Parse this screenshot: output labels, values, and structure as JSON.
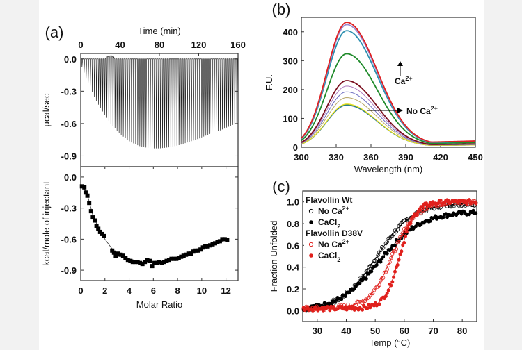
{
  "figure": {
    "panel_labels": [
      "(a)",
      "(b)",
      "(c)"
    ],
    "background": "#f2f2f2",
    "canvas": "#ffffff"
  },
  "chart_data": [
    {
      "id": "a-top",
      "type": "line",
      "title": "",
      "panel": "(a)",
      "xlabel": "Time (min)",
      "ylabel": "µcal/sec",
      "xlim": [
        0,
        160
      ],
      "ylim": [
        -1.0,
        0.05
      ],
      "xticks": [
        0,
        40,
        80,
        120,
        160
      ],
      "yticks": [
        0.0,
        -0.3,
        -0.6,
        -0.9
      ],
      "ytick_labels": [
        "0.0",
        "-0.3",
        "-0.6",
        "-0.9"
      ],
      "series": [
        {
          "name": "raw ITC injections",
          "description": "injection spikes every ~2 min; envelope of peak minima",
          "envelope_x": [
            0,
            5,
            10,
            15,
            20,
            30,
            40,
            50,
            60,
            70,
            80,
            90,
            100,
            110,
            120,
            130,
            140,
            150,
            160
          ],
          "envelope_y": [
            -0.05,
            -0.18,
            -0.28,
            -0.38,
            -0.46,
            -0.6,
            -0.7,
            -0.77,
            -0.81,
            -0.83,
            -0.83,
            -0.82,
            -0.8,
            -0.77,
            -0.74,
            -0.7,
            -0.67,
            -0.63,
            -0.59
          ],
          "color": "#222222"
        }
      ]
    },
    {
      "id": "a-bottom",
      "type": "scatter",
      "title": "",
      "panel": "(a)",
      "xlabel": "Molar Ratio",
      "ylabel": "kcal/mole of injectant",
      "xlim": [
        0,
        13
      ],
      "ylim": [
        -1.0,
        0.1
      ],
      "xticks": [
        0,
        2,
        4,
        6,
        8,
        10,
        12
      ],
      "yticks": [
        0.0,
        -0.3,
        -0.6,
        -0.9
      ],
      "ytick_labels": [
        "0.0",
        "-0.3",
        "-0.6",
        "-0.9"
      ],
      "series": [
        {
          "name": "integrated heats",
          "marker": "filled-square",
          "color": "#000000",
          "x": [
            0.1,
            0.3,
            0.4,
            0.55,
            0.7,
            0.85,
            1.0,
            1.15,
            1.3,
            1.45,
            1.6,
            1.75,
            1.9,
            2.6,
            2.75,
            2.9,
            3.1,
            3.3,
            3.5,
            3.7,
            3.9,
            4.1,
            4.3,
            4.5,
            4.7,
            4.9,
            5.1,
            5.3,
            5.5,
            5.7,
            5.9,
            6.1,
            6.3,
            6.5,
            6.7,
            6.9,
            7.1,
            7.3,
            7.5,
            7.7,
            7.9,
            8.1,
            8.3,
            8.5,
            8.7,
            8.9,
            9.1,
            9.3,
            9.5,
            9.7,
            9.9,
            10.1,
            10.3,
            10.5,
            10.7,
            10.9,
            11.1,
            11.3,
            11.5,
            11.7,
            11.9,
            12.1
          ],
          "y": [
            -0.09,
            -0.1,
            -0.15,
            -0.18,
            -0.25,
            -0.33,
            -0.39,
            -0.42,
            -0.47,
            -0.5,
            -0.53,
            -0.55,
            -0.57,
            -0.71,
            -0.73,
            -0.76,
            -0.74,
            -0.75,
            -0.76,
            -0.78,
            -0.8,
            -0.81,
            -0.82,
            -0.82,
            -0.82,
            -0.83,
            -0.84,
            -0.82,
            -0.8,
            -0.81,
            -0.86,
            -0.83,
            -0.83,
            -0.82,
            -0.83,
            -0.82,
            -0.81,
            -0.8,
            -0.79,
            -0.79,
            -0.79,
            -0.78,
            -0.77,
            -0.76,
            -0.75,
            -0.74,
            -0.74,
            -0.72,
            -0.71,
            -0.71,
            -0.7,
            -0.68,
            -0.67,
            -0.67,
            -0.66,
            -0.65,
            -0.64,
            -0.63,
            -0.62,
            -0.6,
            -0.6,
            -0.61
          ]
        },
        {
          "name": "fit",
          "type": "line",
          "color": "#333333",
          "x": [
            0,
            0.5,
            1,
            1.5,
            2,
            2.5,
            3,
            4,
            5,
            6,
            7,
            8,
            9,
            10,
            11,
            12.2
          ],
          "y": [
            -0.07,
            -0.15,
            -0.37,
            -0.5,
            -0.6,
            -0.68,
            -0.74,
            -0.79,
            -0.82,
            -0.83,
            -0.82,
            -0.79,
            -0.75,
            -0.7,
            -0.65,
            -0.6
          ]
        }
      ]
    },
    {
      "id": "b",
      "type": "line",
      "panel": "(b)",
      "title": "",
      "xlabel": "Wavelength (nm)",
      "ylabel": "F.U.",
      "xlim": [
        300,
        450
      ],
      "ylim": [
        0,
        450
      ],
      "xticks": [
        300,
        330,
        360,
        390,
        420,
        450
      ],
      "yticks": [
        0,
        100,
        200,
        300,
        400
      ],
      "peak_wavelength": 339,
      "annotations": [
        {
          "text": "Ca",
          "sup": "2+",
          "arrow": "up",
          "meaning": "increasing Ca2+"
        },
        {
          "text": "No Ca",
          "sup": "2+",
          "arrow": "right"
        }
      ],
      "series": [
        {
          "name": "spectrum 1",
          "peak": 145,
          "color": "#3a6fb0"
        },
        {
          "name": "spectrum 2",
          "peak": 147,
          "color": "#1f8a6a"
        },
        {
          "name": "spectrum 3",
          "peak": 149,
          "color": "#d8cc22"
        },
        {
          "name": "spectrum 4",
          "peak": 150,
          "color": "#e8e020"
        },
        {
          "name": "spectrum 5",
          "peak": 172,
          "color": "#b9a86a"
        },
        {
          "name": "spectrum 6",
          "peak": 192,
          "color": "#6c6cc0"
        },
        {
          "name": "spectrum 7",
          "peak": 212,
          "color": "#b07cc0"
        },
        {
          "name": "spectrum 8",
          "peak": 231,
          "color": "#7a0e1e"
        },
        {
          "name": "spectrum 9",
          "peak": 324,
          "color": "#1f8a2a"
        },
        {
          "name": "spectrum 10",
          "peak": 404,
          "color": "#2b8fb0"
        },
        {
          "name": "spectrum 11",
          "peak": 425,
          "color": "#9a8ad0"
        },
        {
          "name": "spectrum 12",
          "peak": 433,
          "color": "#e02020"
        }
      ]
    },
    {
      "id": "c",
      "type": "scatter",
      "panel": "(c)",
      "title": "",
      "xlabel": "Temp (°C)",
      "ylabel": "Fraction Unfolded",
      "xlim": [
        25,
        85
      ],
      "ylim": [
        -0.1,
        1.1
      ],
      "xticks": [
        30,
        40,
        50,
        60,
        70,
        80
      ],
      "yticks": [
        0.0,
        0.2,
        0.4,
        0.6,
        0.8,
        1.0
      ],
      "ytick_labels": [
        "0.0",
        "0.2",
        "0.4",
        "0.6",
        "0.8",
        "1.0"
      ],
      "legend": {
        "placement": "top-left",
        "groups": [
          {
            "title": "Flavollin Wt",
            "entries": [
              {
                "label": "No Ca",
                "sup": "2+",
                "marker": "open-circle",
                "color": "#000000"
              },
              {
                "label": "CaCl",
                "sub": "2",
                "marker": "filled-circle",
                "color": "#000000"
              }
            ]
          },
          {
            "title": "Flavollin D38V",
            "entries": [
              {
                "label": "No Ca",
                "sup": "2+",
                "marker": "open-circle",
                "color": "#e0201c"
              },
              {
                "label": "CaCl",
                "sub": "2",
                "marker": "filled-circle",
                "color": "#e0201c"
              }
            ]
          }
        ]
      },
      "series": [
        {
          "name": "Wt No Ca2+",
          "marker": "open",
          "color": "#000000",
          "tm": 50.5,
          "width": 6.2,
          "base": 0.0,
          "top": 0.99
        },
        {
          "name": "Wt CaCl2",
          "marker": "filled",
          "color": "#000000",
          "tm": 51.5,
          "width": 7.0,
          "base": 0.0,
          "top": 0.91
        },
        {
          "name": "D38V No Ca2+",
          "marker": "open",
          "color": "#e0201c",
          "tm": 56.0,
          "width": 4.0,
          "base": 0.02,
          "top": 1.0
        },
        {
          "name": "D38V CaCl2",
          "marker": "filled",
          "color": "#e0201c",
          "tm": 58.5,
          "width": 2.6,
          "base": 0.02,
          "top": 1.0
        }
      ]
    }
  ]
}
